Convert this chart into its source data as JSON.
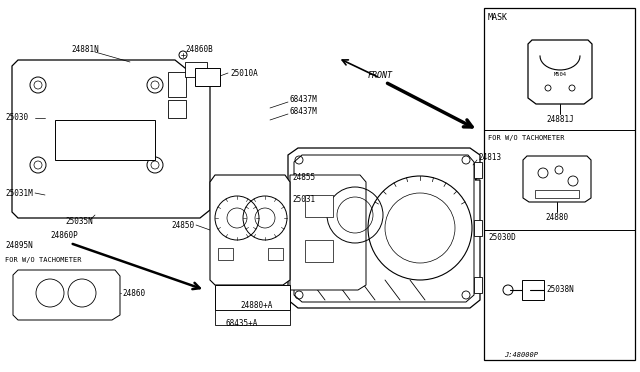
{
  "bg_color": "#ffffff",
  "lc": "#000000",
  "labels": {
    "mask": "MASK",
    "for_wo_tach": "FOR W/O TACHOMETER",
    "front": "FRONT",
    "24881N": "24881N",
    "24860B": "24860B",
    "25030": "25030",
    "25010A": "25010A",
    "68437M": "68437M",
    "24855": "24855",
    "24850": "24850",
    "25031": "25031",
    "25031M": "25031M",
    "25035N": "25035N",
    "24860P": "24860P",
    "24895N": "24895N",
    "68435A": "68435+A",
    "68435": "68435",
    "24880A": "24880+A",
    "24813": "24813",
    "24881J": "24881J",
    "24880": "24880",
    "25030D": "25030D",
    "25038N": "25038N",
    "24860": "24860",
    "diagram_num": "J:48000P"
  }
}
